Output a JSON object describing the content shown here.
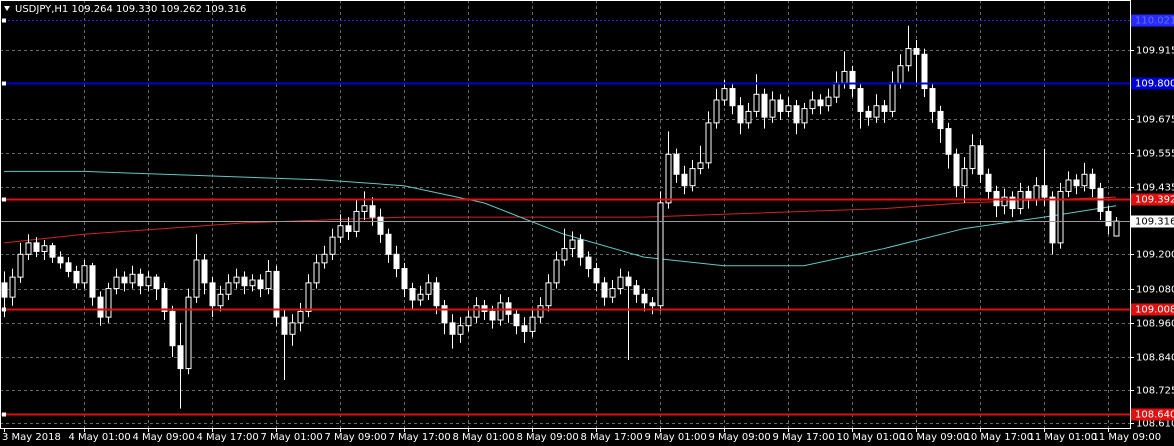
{
  "chart_data": {
    "type": "candlestick",
    "title": "USDJPY,H1  109.264 109.330 109.262 109.316",
    "x_labels": [
      "3 May 2018",
      "4 May 01:00",
      "4 May 09:00",
      "4 May 17:00",
      "7 May 01:00",
      "7 May 09:00",
      "7 May 17:00",
      "8 May 01:00",
      "8 May 09:00",
      "8 May 17:00",
      "9 May 01:00",
      "9 May 09:00",
      "9 May 17:00",
      "10 May 01:00",
      "10 May 09:00",
      "10 May 17:00",
      "11 May 01:00",
      "11 May 09:00"
    ],
    "ohlc": [
      [
        109.1,
        109.14,
        108.98,
        109.05
      ],
      [
        109.05,
        109.15,
        109.02,
        109.12
      ],
      [
        109.12,
        109.24,
        109.1,
        109.2
      ],
      [
        109.2,
        109.27,
        109.18,
        109.24
      ],
      [
        109.24,
        109.26,
        109.19,
        109.21
      ],
      [
        109.21,
        109.25,
        109.18,
        109.23
      ],
      [
        109.23,
        109.24,
        109.17,
        109.19
      ],
      [
        109.19,
        109.21,
        109.15,
        109.17
      ],
      [
        109.17,
        109.19,
        109.12,
        109.14
      ],
      [
        109.14,
        109.16,
        109.08,
        109.1
      ],
      [
        109.1,
        109.18,
        109.08,
        109.16
      ],
      [
        109.16,
        109.17,
        109.02,
        109.05
      ],
      [
        109.05,
        109.07,
        108.95,
        108.98
      ],
      [
        108.98,
        109.1,
        108.96,
        109.08
      ],
      [
        109.08,
        109.15,
        109.06,
        109.12
      ],
      [
        109.12,
        109.14,
        109.07,
        109.1
      ],
      [
        109.1,
        109.16,
        109.08,
        109.13
      ],
      [
        109.13,
        109.15,
        109.06,
        109.09
      ],
      [
        109.09,
        109.14,
        109.07,
        109.12
      ],
      [
        109.12,
        109.13,
        109.04,
        109.08
      ],
      [
        109.08,
        109.1,
        108.97,
        109.0
      ],
      [
        109.0,
        109.02,
        108.84,
        108.88
      ],
      [
        108.88,
        108.96,
        108.66,
        108.8
      ],
      [
        108.8,
        109.08,
        108.78,
        109.05
      ],
      [
        109.05,
        109.27,
        109.03,
        109.18
      ],
      [
        109.18,
        109.2,
        109.06,
        109.1
      ],
      [
        109.1,
        109.12,
        108.98,
        109.02
      ],
      [
        109.02,
        109.09,
        109.0,
        109.06
      ],
      [
        109.06,
        109.13,
        109.04,
        109.1
      ],
      [
        109.1,
        109.15,
        109.08,
        109.12
      ],
      [
        109.12,
        109.14,
        109.06,
        109.09
      ],
      [
        109.09,
        109.13,
        109.07,
        109.11
      ],
      [
        109.11,
        109.13,
        109.05,
        109.08
      ],
      [
        109.08,
        109.18,
        109.06,
        109.14
      ],
      [
        109.14,
        109.16,
        108.95,
        108.98
      ],
      [
        108.98,
        109.01,
        108.76,
        108.92
      ],
      [
        108.92,
        108.99,
        108.88,
        108.96
      ],
      [
        108.96,
        109.03,
        108.93,
        109.0
      ],
      [
        109.0,
        109.13,
        108.98,
        109.1
      ],
      [
        109.1,
        109.2,
        109.08,
        109.17
      ],
      [
        109.17,
        109.23,
        109.15,
        109.2
      ],
      [
        109.2,
        109.29,
        109.18,
        109.26
      ],
      [
        109.26,
        109.34,
        109.24,
        109.3
      ],
      [
        109.3,
        109.33,
        109.25,
        109.28
      ],
      [
        109.28,
        109.39,
        109.26,
        109.35
      ],
      [
        109.35,
        109.42,
        109.32,
        109.37
      ],
      [
        109.37,
        109.4,
        109.3,
        109.33
      ],
      [
        109.33,
        109.36,
        109.24,
        109.27
      ],
      [
        109.27,
        109.29,
        109.17,
        109.2
      ],
      [
        109.2,
        109.23,
        109.12,
        109.15
      ],
      [
        109.15,
        109.17,
        109.05,
        109.08
      ],
      [
        109.08,
        109.1,
        109.01,
        109.04
      ],
      [
        109.04,
        109.09,
        109.02,
        109.06
      ],
      [
        109.06,
        109.13,
        109.04,
        109.1
      ],
      [
        109.1,
        109.12,
        108.99,
        109.02
      ],
      [
        109.02,
        109.04,
        108.92,
        108.96
      ],
      [
        108.96,
        108.99,
        108.87,
        108.92
      ],
      [
        108.92,
        108.98,
        108.89,
        108.95
      ],
      [
        108.95,
        109.01,
        108.93,
        108.98
      ],
      [
        108.98,
        109.05,
        108.96,
        109.02
      ],
      [
        109.02,
        109.04,
        108.97,
        109.0
      ],
      [
        109.0,
        109.02,
        108.94,
        108.97
      ],
      [
        108.97,
        109.06,
        108.95,
        109.03
      ],
      [
        109.03,
        109.05,
        108.96,
        108.99
      ],
      [
        108.99,
        109.01,
        108.92,
        108.95
      ],
      [
        108.95,
        108.98,
        108.89,
        108.93
      ],
      [
        108.93,
        109.01,
        108.91,
        108.98
      ],
      [
        108.98,
        109.05,
        108.96,
        109.02
      ],
      [
        109.02,
        109.13,
        109.0,
        109.1
      ],
      [
        109.1,
        109.21,
        109.08,
        109.18
      ],
      [
        109.18,
        109.29,
        109.16,
        109.22
      ],
      [
        109.22,
        109.28,
        109.19,
        109.25
      ],
      [
        109.25,
        109.27,
        109.16,
        109.19
      ],
      [
        109.19,
        109.21,
        109.12,
        109.15
      ],
      [
        109.15,
        109.17,
        109.07,
        109.1
      ],
      [
        109.1,
        109.12,
        109.02,
        109.05
      ],
      [
        109.05,
        109.11,
        109.03,
        109.08
      ],
      [
        109.08,
        109.15,
        109.06,
        109.12
      ],
      [
        109.12,
        109.14,
        108.83,
        109.09
      ],
      [
        109.09,
        109.11,
        109.03,
        109.06
      ],
      [
        109.06,
        109.08,
        109.0,
        109.03
      ],
      [
        109.03,
        109.05,
        108.99,
        109.02
      ],
      [
        109.02,
        109.42,
        109.0,
        109.38
      ],
      [
        109.38,
        109.63,
        109.36,
        109.55
      ],
      [
        109.55,
        109.57,
        109.45,
        109.48
      ],
      [
        109.48,
        109.51,
        109.41,
        109.44
      ],
      [
        109.44,
        109.53,
        109.42,
        109.5
      ],
      [
        109.5,
        109.58,
        109.48,
        109.52
      ],
      [
        109.52,
        109.7,
        109.5,
        109.66
      ],
      [
        109.66,
        109.78,
        109.64,
        109.74
      ],
      [
        109.74,
        109.81,
        109.72,
        109.78
      ],
      [
        109.78,
        109.8,
        109.69,
        109.72
      ],
      [
        109.72,
        109.75,
        109.62,
        109.66
      ],
      [
        109.66,
        109.73,
        109.64,
        109.7
      ],
      [
        109.7,
        109.83,
        109.68,
        109.76
      ],
      [
        109.76,
        109.78,
        109.64,
        109.68
      ],
      [
        109.68,
        109.77,
        109.66,
        109.74
      ],
      [
        109.74,
        109.76,
        109.67,
        109.7
      ],
      [
        109.7,
        109.75,
        109.68,
        109.72
      ],
      [
        109.72,
        109.74,
        109.62,
        109.66
      ],
      [
        109.66,
        109.73,
        109.64,
        109.71
      ],
      [
        109.71,
        109.77,
        109.69,
        109.74
      ],
      [
        109.74,
        109.76,
        109.69,
        109.72
      ],
      [
        109.72,
        109.78,
        109.7,
        109.75
      ],
      [
        109.75,
        109.84,
        109.73,
        109.8
      ],
      [
        109.8,
        109.91,
        109.78,
        109.84
      ],
      [
        109.84,
        109.86,
        109.75,
        109.78
      ],
      [
        109.78,
        109.8,
        109.64,
        109.7
      ],
      [
        109.7,
        109.72,
        109.65,
        109.68
      ],
      [
        109.68,
        109.76,
        109.66,
        109.72
      ],
      [
        109.72,
        109.74,
        109.66,
        109.7
      ],
      [
        109.7,
        109.84,
        109.68,
        109.8
      ],
      [
        109.8,
        109.9,
        109.78,
        109.86
      ],
      [
        109.86,
        110.0,
        109.84,
        109.92
      ],
      [
        109.92,
        109.95,
        109.8,
        109.9
      ],
      [
        109.9,
        109.92,
        109.75,
        109.78
      ],
      [
        109.78,
        109.8,
        109.66,
        109.7
      ],
      [
        109.7,
        109.72,
        109.59,
        109.64
      ],
      [
        109.64,
        109.66,
        109.5,
        109.55
      ],
      [
        109.55,
        109.57,
        109.4,
        109.44
      ],
      [
        109.44,
        109.54,
        109.38,
        109.5
      ],
      [
        109.5,
        109.62,
        109.48,
        109.58
      ],
      [
        109.58,
        109.6,
        109.45,
        109.48
      ],
      [
        109.48,
        109.5,
        109.39,
        109.42
      ],
      [
        109.42,
        109.44,
        109.33,
        109.37
      ],
      [
        109.37,
        109.43,
        109.34,
        109.4
      ],
      [
        109.4,
        109.42,
        109.33,
        109.36
      ],
      [
        109.36,
        109.45,
        109.34,
        109.42
      ],
      [
        109.42,
        109.44,
        109.36,
        109.39
      ],
      [
        109.39,
        109.47,
        109.37,
        109.44
      ],
      [
        109.44,
        109.57,
        109.37,
        109.4
      ],
      [
        109.4,
        109.42,
        109.2,
        109.24
      ],
      [
        109.24,
        109.45,
        109.22,
        109.42
      ],
      [
        109.42,
        109.49,
        109.4,
        109.46
      ],
      [
        109.46,
        109.48,
        109.41,
        109.44
      ],
      [
        109.44,
        109.52,
        109.42,
        109.48
      ],
      [
        109.48,
        109.5,
        109.4,
        109.43
      ],
      [
        109.43,
        109.45,
        109.32,
        109.35
      ],
      [
        109.35,
        109.37,
        109.27,
        109.3
      ],
      [
        109.264,
        109.33,
        109.262,
        109.316
      ]
    ],
    "up_fill": "#000000",
    "down_fill": "#ffffff",
    "candle_stroke": "#ffffff",
    "ylim": [
      108.592,
      110.09
    ],
    "yticks": [
      109.915,
      109.675,
      109.555,
      109.435,
      {
        "value": 109.2,
        "label": "109.200"
      },
      {
        "value": 109.08,
        "label": "109.080"
      },
      {
        "value": 108.96,
        "label": "108.960"
      },
      {
        "value": 108.84,
        "label": "108.840"
      },
      108.725,
      {
        "value": 108.61,
        "label": "108.610"
      }
    ],
    "grid": true,
    "current_price": 109.316,
    "levels": [
      {
        "value": 110.021,
        "color": "#2828ff",
        "style": "dotted"
      },
      {
        "value": 109.8,
        "label": "109.800",
        "color": "#0000d8",
        "style": "solid"
      },
      {
        "value": 109.392,
        "color": "#e01010",
        "style": "solid"
      },
      {
        "value": 109.008,
        "color": "#e01010",
        "style": "solid"
      },
      {
        "value": 108.64,
        "label": "108.640",
        "color": "#e01010",
        "style": "solid"
      }
    ],
    "moving_averages": [
      {
        "color": "#d42222",
        "x": [
          0,
          10,
          20,
          30,
          40,
          50,
          60,
          70,
          80,
          90,
          100,
          110,
          120,
          130,
          139
        ],
        "values": [
          109.24,
          109.27,
          109.29,
          109.31,
          109.32,
          109.33,
          109.33,
          109.33,
          109.33,
          109.34,
          109.35,
          109.36,
          109.38,
          109.39,
          109.4
        ]
      },
      {
        "color": "#5ec8c8",
        "x": [
          0,
          10,
          20,
          30,
          40,
          50,
          60,
          70,
          80,
          90,
          100,
          110,
          120,
          130,
          139
        ],
        "values": [
          109.49,
          109.49,
          109.48,
          109.47,
          109.46,
          109.44,
          109.38,
          109.27,
          109.19,
          109.16,
          109.16,
          109.22,
          109.29,
          109.33,
          109.37
        ]
      }
    ]
  }
}
